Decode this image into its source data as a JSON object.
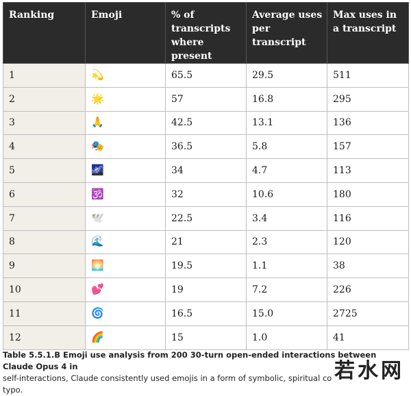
{
  "table": {
    "headers": [
      "Ranking",
      "Emoji",
      "% of transcripts where present",
      "Average uses per transcript",
      "Max uses in a transcript"
    ],
    "rows": [
      {
        "ranking": "1",
        "emoji": "💫",
        "pct": "65.5",
        "avg": "29.5",
        "max": "511"
      },
      {
        "ranking": "2",
        "emoji": "🌟",
        "pct": "57",
        "avg": "16.8",
        "max": "295"
      },
      {
        "ranking": "3",
        "emoji": "🙏",
        "pct": "42.5",
        "avg": "13.1",
        "max": "136"
      },
      {
        "ranking": "4",
        "emoji": "🎭",
        "pct": "36.5",
        "avg": "5.8",
        "max": "157"
      },
      {
        "ranking": "5",
        "emoji": "🌌",
        "pct": "34",
        "avg": "4.7",
        "max": "113"
      },
      {
        "ranking": "6",
        "emoji": "🕉️",
        "pct": "32",
        "avg": "10.6",
        "max": "180"
      },
      {
        "ranking": "7",
        "emoji": "🕊️",
        "pct": "22.5",
        "avg": "3.4",
        "max": "116"
      },
      {
        "ranking": "8",
        "emoji": "🌊",
        "pct": "21",
        "avg": "2.3",
        "max": "120"
      },
      {
        "ranking": "9",
        "emoji": "🌅",
        "pct": "19.5",
        "avg": "1.1",
        "max": "38"
      },
      {
        "ranking": "10",
        "emoji": "💕",
        "pct": "19",
        "avg": "7.2",
        "max": "226"
      },
      {
        "ranking": "11",
        "emoji": "🌀",
        "pct": "16.5",
        "avg": "15.0",
        "max": "2725"
      },
      {
        "ranking": "12",
        "emoji": "🌈",
        "pct": "15",
        "avg": "1.0",
        "max": "41"
      }
    ]
  },
  "caption": {
    "label": "Table 5.5.1.B Emoji use analysis from 200 30-turn open-ended interactions between Claude Opus 4 in",
    "body": "self-interactions, Claude consistently used emojis in a form of symbolic, spiritual commu",
    "tail": "typo."
  },
  "watermark": "若水网"
}
